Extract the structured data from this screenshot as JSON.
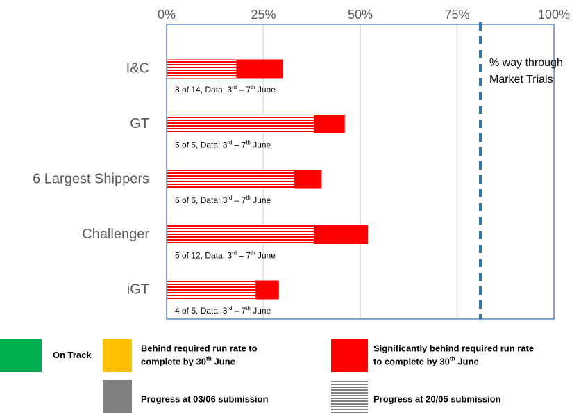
{
  "chart_data": {
    "type": "overlay-bar",
    "categories": [
      "I&C",
      "GT",
      "6 Largest Shippers",
      "Challenger",
      "iGT"
    ],
    "series": [
      {
        "name": "Progress at 03/06 submission",
        "color": "#ff0000",
        "values": [
          30,
          46,
          40,
          52,
          29
        ]
      },
      {
        "name": "Progress at 20/05 submission",
        "color": "#ff0000",
        "pattern": "striped",
        "values": [
          18,
          38,
          33,
          38,
          23
        ]
      }
    ],
    "bar_notes": [
      [
        {
          "text": "8 of 14, Data: 3",
          "sup": false
        },
        {
          "text": "rd",
          "sup": true
        },
        {
          "text": " – 7",
          "sup": false
        },
        {
          "text": "th",
          "sup": true
        },
        {
          "text": " June",
          "sup": false
        }
      ],
      [
        {
          "text": "5 of 5, Data: 3",
          "sup": false
        },
        {
          "text": "rd",
          "sup": true
        },
        {
          "text": " – 7",
          "sup": false
        },
        {
          "text": "th",
          "sup": true
        },
        {
          "text": " June",
          "sup": false
        }
      ],
      [
        {
          "text": "6 of 6, Data: 3",
          "sup": false
        },
        {
          "text": "rd",
          "sup": true
        },
        {
          "text": " – 7",
          "sup": false
        },
        {
          "text": "th",
          "sup": true
        },
        {
          "text": " June",
          "sup": false
        }
      ],
      [
        {
          "text": "5 of 12, Data: 3",
          "sup": false
        },
        {
          "text": "rd",
          "sup": true
        },
        {
          "text": " – 7",
          "sup": false
        },
        {
          "text": "th",
          "sup": true
        },
        {
          "text": " June",
          "sup": false
        }
      ],
      [
        {
          "text": "4 of 5, Data: 3",
          "sup": false
        },
        {
          "text": "rd",
          "sup": true
        },
        {
          "text": " – 7",
          "sup": false
        },
        {
          "text": "th",
          "sup": true
        },
        {
          "text": " June",
          "sup": false
        }
      ]
    ],
    "xlim": [
      0,
      100
    ],
    "xticks": [
      {
        "value": 0,
        "label": "0%"
      },
      {
        "value": 25,
        "label": "25%"
      },
      {
        "value": 50,
        "label": "50%"
      },
      {
        "value": 75,
        "label": "75%"
      },
      {
        "value": 100,
        "label": "100%"
      }
    ],
    "grid": true,
    "reference_line": {
      "value": 81,
      "color": "#2e75b6",
      "lines": [
        "% way through",
        "Market Trials"
      ]
    },
    "status_legend": [
      {
        "color": "#00b050",
        "lines": [
          [
            {
              "text": "On Track",
              "sup": false
            }
          ]
        ]
      },
      {
        "color": "#ffc000",
        "lines": [
          [
            {
              "text": "Behind required run rate to",
              "sup": false
            }
          ],
          [
            {
              "text": "complete by 30",
              "sup": false
            },
            {
              "text": "th",
              "sup": true
            },
            {
              "text": " June",
              "sup": false
            }
          ]
        ]
      },
      {
        "color": "#ff0000",
        "lines": [
          [
            {
              "text": "Significantly behind required run rate",
              "sup": false
            }
          ],
          [
            {
              "text": "to complete by 30",
              "sup": false
            },
            {
              "text": "th",
              "sup": true
            },
            {
              "text": " June",
              "sup": false
            }
          ]
        ]
      }
    ],
    "progress_legend_color": "#808080"
  }
}
